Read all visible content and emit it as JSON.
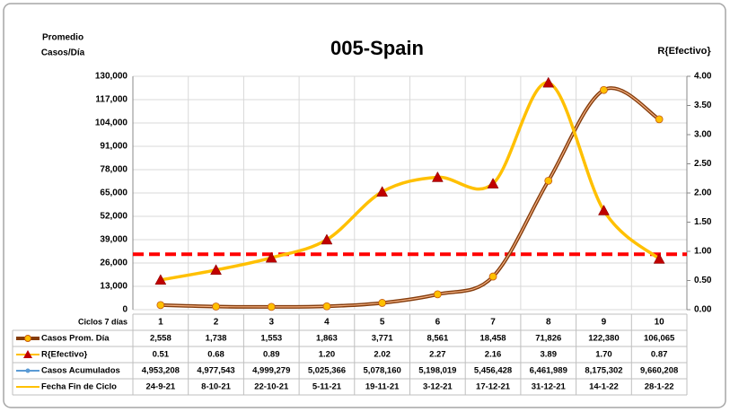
{
  "chart_data": {
    "type": "line",
    "title": "005-Spain",
    "y_label_lines": [
      "Promedio",
      "Casos/Día"
    ],
    "y2_label": "R{Efectivo}",
    "table_header": "Ciclos 7 días",
    "categories": [
      "1",
      "2",
      "3",
      "4",
      "5",
      "6",
      "7",
      "8",
      "9",
      "10"
    ],
    "ylim": [
      0,
      130000
    ],
    "yticks": [
      {
        "value": 0,
        "label": "0"
      },
      {
        "value": 13000,
        "label": "13,000"
      },
      {
        "value": 26000,
        "label": "26,000"
      },
      {
        "value": 39000,
        "label": "39,000"
      },
      {
        "value": 52000,
        "label": "52,000"
      },
      {
        "value": 65000,
        "label": "65,000"
      },
      {
        "value": 78000,
        "label": "78,000"
      },
      {
        "value": 91000,
        "label": "91,000"
      },
      {
        "value": 104000,
        "label": "104,000"
      },
      {
        "value": 117000,
        "label": "117,000"
      },
      {
        "value": 130000,
        "label": "130,000"
      }
    ],
    "y2lim": [
      0,
      4
    ],
    "y2ticks": [
      {
        "value": 0,
        "label": "0.00"
      },
      {
        "value": 0.5,
        "label": "0.50"
      },
      {
        "value": 1,
        "label": "1.00"
      },
      {
        "value": 1.5,
        "label": "1.50"
      },
      {
        "value": 2,
        "label": "2.00"
      },
      {
        "value": 2.5,
        "label": "2.50"
      },
      {
        "value": 3,
        "label": "3.00"
      },
      {
        "value": 3.5,
        "label": "3.50"
      },
      {
        "value": 4,
        "label": "4.00"
      }
    ],
    "reference_line": {
      "axis": "y2",
      "value": 0.95,
      "color": "#ff0000"
    },
    "grid": true,
    "series": [
      {
        "name": "Casos Prom. Día",
        "color": "#843c0c",
        "marker_color": "#ffc000",
        "values": [
          2558,
          1738,
          1553,
          1863,
          3771,
          8561,
          18458,
          71826,
          122380,
          106065
        ],
        "value_labels": [
          "2,558",
          "1,738",
          "1,553",
          "1,863",
          "3,771",
          "8,561",
          "18,458",
          "71,826",
          "122,380",
          "106,065"
        ]
      },
      {
        "name": "R{Efectivo}",
        "color": "#ffc000",
        "marker_color": "#c00000",
        "axis": "y2",
        "values": [
          0.51,
          0.68,
          0.89,
          1.2,
          2.02,
          2.27,
          2.16,
          3.89,
          1.7,
          0.87
        ],
        "value_labels": [
          "0.51",
          "0.68",
          "0.89",
          "1.20",
          "2.02",
          "2.27",
          "2.16",
          "3.89",
          "1.70",
          "0.87"
        ]
      },
      {
        "name": "Casos Acumulados",
        "color": "#5b9bd5",
        "values": [
          4953208,
          4977543,
          4999279,
          5025366,
          5078160,
          5198019,
          5456428,
          6461989,
          8175302,
          9660208
        ],
        "value_labels": [
          "4,953,208",
          "4,977,543",
          "4,999,279",
          "5,025,366",
          "5,078,160",
          "5,198,019",
          "5,456,428",
          "6,461,989",
          "8,175,302",
          "9,660,208"
        ]
      },
      {
        "name": "Fecha Fin de Ciclo",
        "color": "#ffc000",
        "labels": [
          "24-9-21",
          "8-10-21",
          "22-10-21",
          "5-11-21",
          "19-11-21",
          "3-12-21",
          "17-12-21",
          "31-12-21",
          "14-1-22",
          "28-1-22"
        ]
      }
    ]
  }
}
